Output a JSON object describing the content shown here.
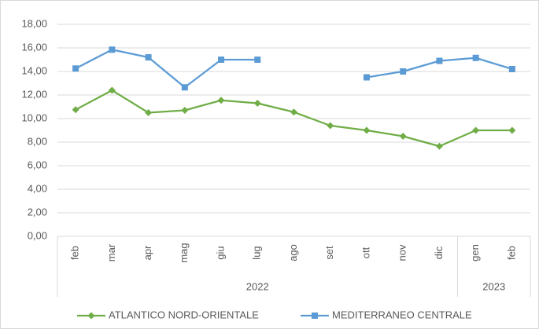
{
  "chart_data": {
    "type": "line",
    "category_groups": [
      {
        "name": "2022",
        "categories": [
          "feb",
          "mar",
          "apr",
          "mag",
          "giu",
          "lug",
          "ago",
          "set",
          "ott",
          "nov",
          "dic"
        ]
      },
      {
        "name": "2023",
        "categories": [
          "gen",
          "feb"
        ]
      }
    ],
    "series": [
      {
        "name": "ATLANTICO NORD-ORIENTALE",
        "color": "#70ad47",
        "marker": "diamond",
        "values": [
          10.75,
          12.4,
          10.5,
          10.7,
          11.55,
          11.3,
          10.55,
          9.4,
          9.0,
          8.5,
          7.65,
          9.0,
          9.0
        ]
      },
      {
        "name": "MEDITERRANEO CENTRALE",
        "color": "#5b9bd5",
        "marker": "square",
        "values": [
          14.25,
          15.85,
          15.2,
          12.65,
          15.0,
          15.0,
          null,
          null,
          13.5,
          14.0,
          14.9,
          15.15,
          14.2
        ]
      }
    ],
    "ylim": [
      0,
      18
    ],
    "yticks": [
      {
        "value": 0,
        "label": "0,00"
      },
      {
        "value": 2,
        "label": "2,00"
      },
      {
        "value": 4,
        "label": "4,00"
      },
      {
        "value": 6,
        "label": "6,00"
      },
      {
        "value": 8,
        "label": "8,00"
      },
      {
        "value": 10,
        "label": "10,00"
      },
      {
        "value": 12,
        "label": "12,00"
      },
      {
        "value": 14,
        "label": "14,00"
      },
      {
        "value": 16,
        "label": "16,00"
      },
      {
        "value": 18,
        "label": "18,00"
      }
    ],
    "grid": true
  }
}
